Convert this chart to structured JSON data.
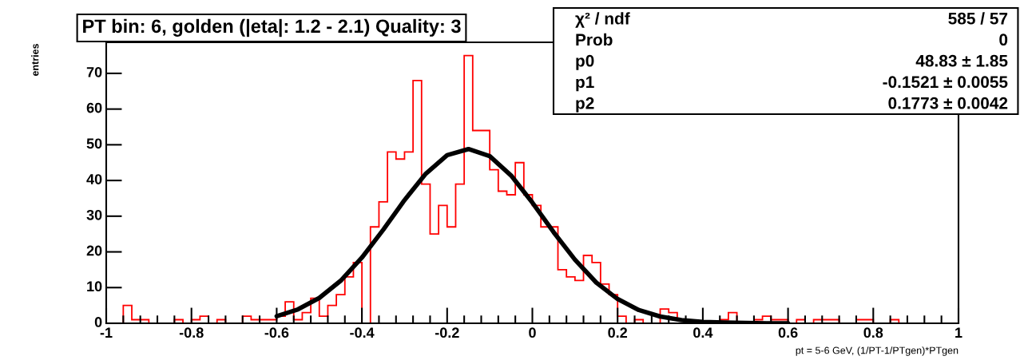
{
  "chart_data": {
    "type": "histogram",
    "title": "PT bin: 6, golden (|eta|: 1.2 - 2.1) Quality: 3",
    "xlabel": "pt = 5-6 GeV, (1/PT-1/PTgen)*PTgen",
    "ylabel": "entries",
    "annotations": [
      "χ² / ndf",
      "585 / 57",
      "Prob",
      "0",
      "p0",
      "48.83 ± 1.85",
      "p1",
      "-0.1521 ± 0.0055",
      "p2",
      "0.1773 ± 0.0042"
    ],
    "bins": [
      -1,
      -0.98,
      -0.96,
      -0.94,
      -0.92,
      -0.9,
      -0.88,
      -0.86,
      -0.84,
      -0.82,
      -0.8,
      -0.78,
      -0.76,
      -0.74,
      -0.72,
      -0.7,
      -0.68,
      -0.66,
      -0.64,
      -0.62,
      -0.6,
      -0.58,
      -0.56,
      -0.54,
      -0.52,
      -0.5,
      -0.48,
      -0.46,
      -0.44,
      -0.42,
      -0.4,
      -0.38,
      -0.36,
      -0.34,
      -0.32,
      -0.3,
      -0.28,
      -0.26,
      -0.24,
      -0.22,
      -0.2,
      -0.18,
      -0.16,
      -0.14,
      -0.12,
      -0.1,
      -0.08,
      -0.06,
      -0.04,
      -0.02,
      0,
      0.02,
      0.04,
      0.06,
      0.08,
      0.1,
      0.12,
      0.14,
      0.16,
      0.18,
      0.2,
      0.22,
      0.24,
      0.26,
      0.28,
      0.3,
      0.32,
      0.34,
      0.36,
      0.38,
      0.4,
      0.42,
      0.44,
      0.46,
      0.48,
      0.5,
      0.52,
      0.54,
      0.56,
      0.58,
      0.6,
      0.62,
      0.64,
      0.66,
      0.68,
      0.7,
      0.72,
      0.74,
      0.76,
      0.78,
      0.8,
      0.82,
      0.84,
      0.86,
      0.88,
      0.9,
      0.92,
      0.94,
      0.96,
      0.98,
      1
    ],
    "series": [
      {
        "color": "#ff0000",
        "values": [
          0,
          0,
          5,
          1,
          1,
          0,
          0,
          0,
          1,
          0,
          1,
          2,
          0,
          1,
          0,
          0,
          2,
          1,
          1,
          1,
          2,
          6,
          1,
          3,
          7,
          2,
          5,
          8,
          13,
          17,
          0,
          27,
          34,
          48,
          46,
          48,
          68,
          39,
          25,
          33,
          27,
          39,
          75,
          54,
          54,
          43,
          37,
          36,
          45,
          36,
          33,
          27,
          27,
          15,
          13,
          12,
          19,
          17,
          11,
          8,
          2,
          0,
          1,
          0,
          0,
          4,
          3,
          1,
          0,
          0,
          0,
          0,
          1,
          3,
          0,
          0,
          1,
          2,
          1,
          1,
          0,
          1,
          0,
          1,
          1,
          1,
          0,
          0,
          1,
          1,
          0,
          0,
          1,
          0,
          0,
          0,
          0,
          0,
          0,
          0
        ]
      },
      {
        "type": "line",
        "color": "#000000",
        "x": [
          -0.6,
          -0.55,
          -0.5,
          -0.45,
          -0.4,
          -0.35,
          -0.3,
          -0.25,
          -0.2,
          -0.15,
          -0.1,
          -0.05,
          0,
          0.05,
          0.1,
          0.15,
          0.2,
          0.25,
          0.3,
          0.35,
          0.4,
          0.45,
          0.5,
          0.55,
          0.6
        ],
        "values": [
          2.0,
          3.9,
          7.1,
          11.9,
          18.4,
          26.2,
          34.5,
          41.9,
          47.1,
          48.8,
          46.8,
          41.4,
          33.8,
          25.5,
          17.8,
          11.4,
          6.8,
          3.7,
          1.9,
          0.9,
          0.4,
          0.2,
          0.1,
          0,
          0
        ]
      }
    ],
    "xlim": [
      -1,
      1
    ],
    "xticks": [
      -1,
      -0.8,
      -0.6,
      -0.4,
      -0.2,
      0,
      0.2,
      0.4,
      0.6,
      0.8,
      1
    ],
    "ylim": [
      0,
      78.7
    ],
    "yticks": [
      0,
      10,
      20,
      30,
      40,
      50,
      60,
      70
    ],
    "grid": false,
    "legend": false
  }
}
